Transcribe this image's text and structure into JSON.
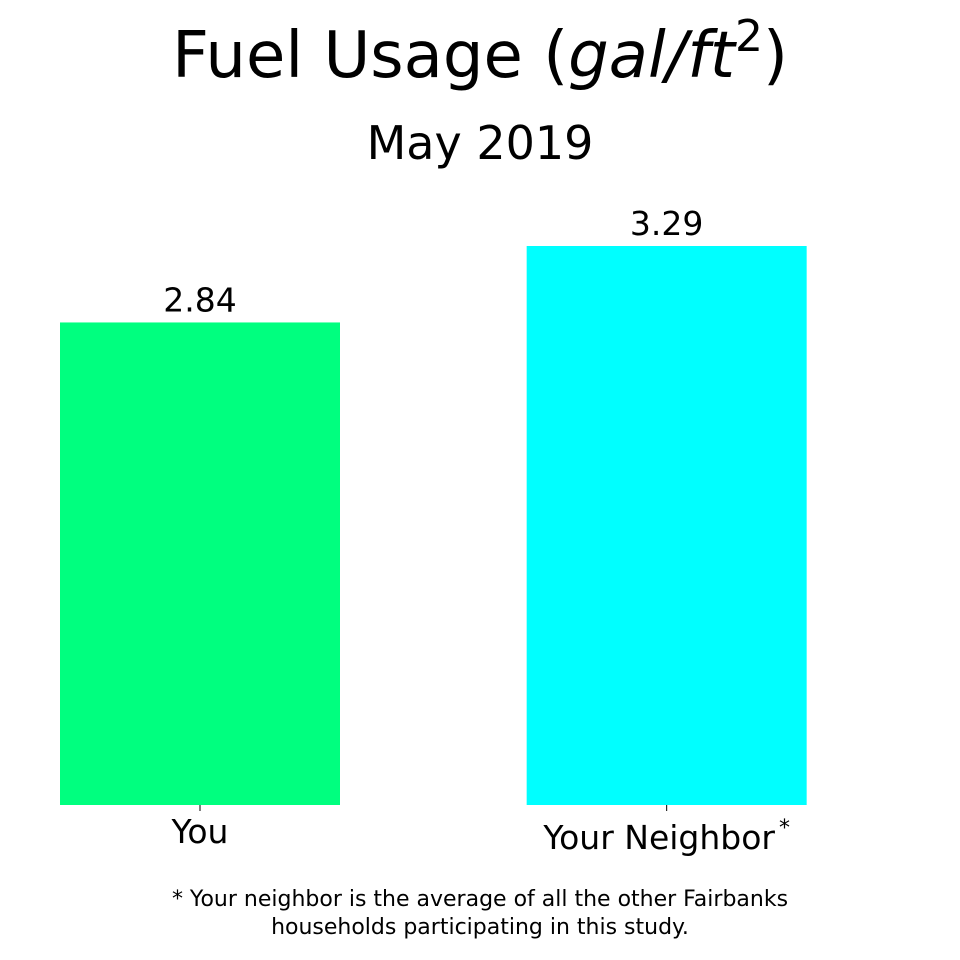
{
  "title": {
    "main": "Fuel Usage (",
    "unit": "gal/ft",
    "unit_exponent": "2",
    "close": ")"
  },
  "subtitle": "May 2019",
  "footnote": {
    "line1": "* Your neighbor is the average of all the other Fairbanks",
    "line2": "households participating in this study."
  },
  "chart_data": {
    "type": "bar",
    "title": "Fuel Usage (gal/ft²)",
    "subtitle": "May 2019",
    "categories": [
      "You",
      "Your Neighbor"
    ],
    "category_superscripts": [
      "",
      "*"
    ],
    "values": [
      2.84,
      3.29
    ],
    "value_labels": [
      "2.84",
      "3.29"
    ],
    "colors": [
      "#00ff7f",
      "#00ffff"
    ],
    "ylim": [
      0,
      3.29
    ],
    "xlabel": "",
    "ylabel": "",
    "grid": false,
    "axes_visible": false
  }
}
